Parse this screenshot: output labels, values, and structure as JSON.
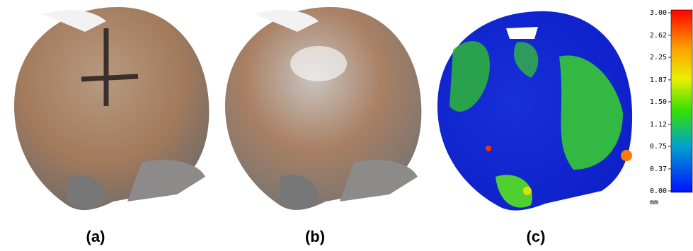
{
  "panels": [
    {
      "label": "(a)"
    },
    {
      "label": "(b)"
    },
    {
      "label": "(c)"
    }
  ],
  "colorbar": {
    "ticks": [
      {
        "value": 3,
        "label": "3.00"
      },
      {
        "value": 2.62,
        "label": "2.62"
      },
      {
        "value": 2.25,
        "label": "2.25"
      },
      {
        "value": 1.87,
        "label": "1.87"
      },
      {
        "value": 1.5,
        "label": "1.50"
      },
      {
        "value": 1.12,
        "label": "1.12"
      },
      {
        "value": 0.75,
        "label": "0.75"
      },
      {
        "value": 0.37,
        "label": "0.37"
      },
      {
        "value": 0,
        "label": "0.00"
      }
    ],
    "unit": "mm"
  }
}
